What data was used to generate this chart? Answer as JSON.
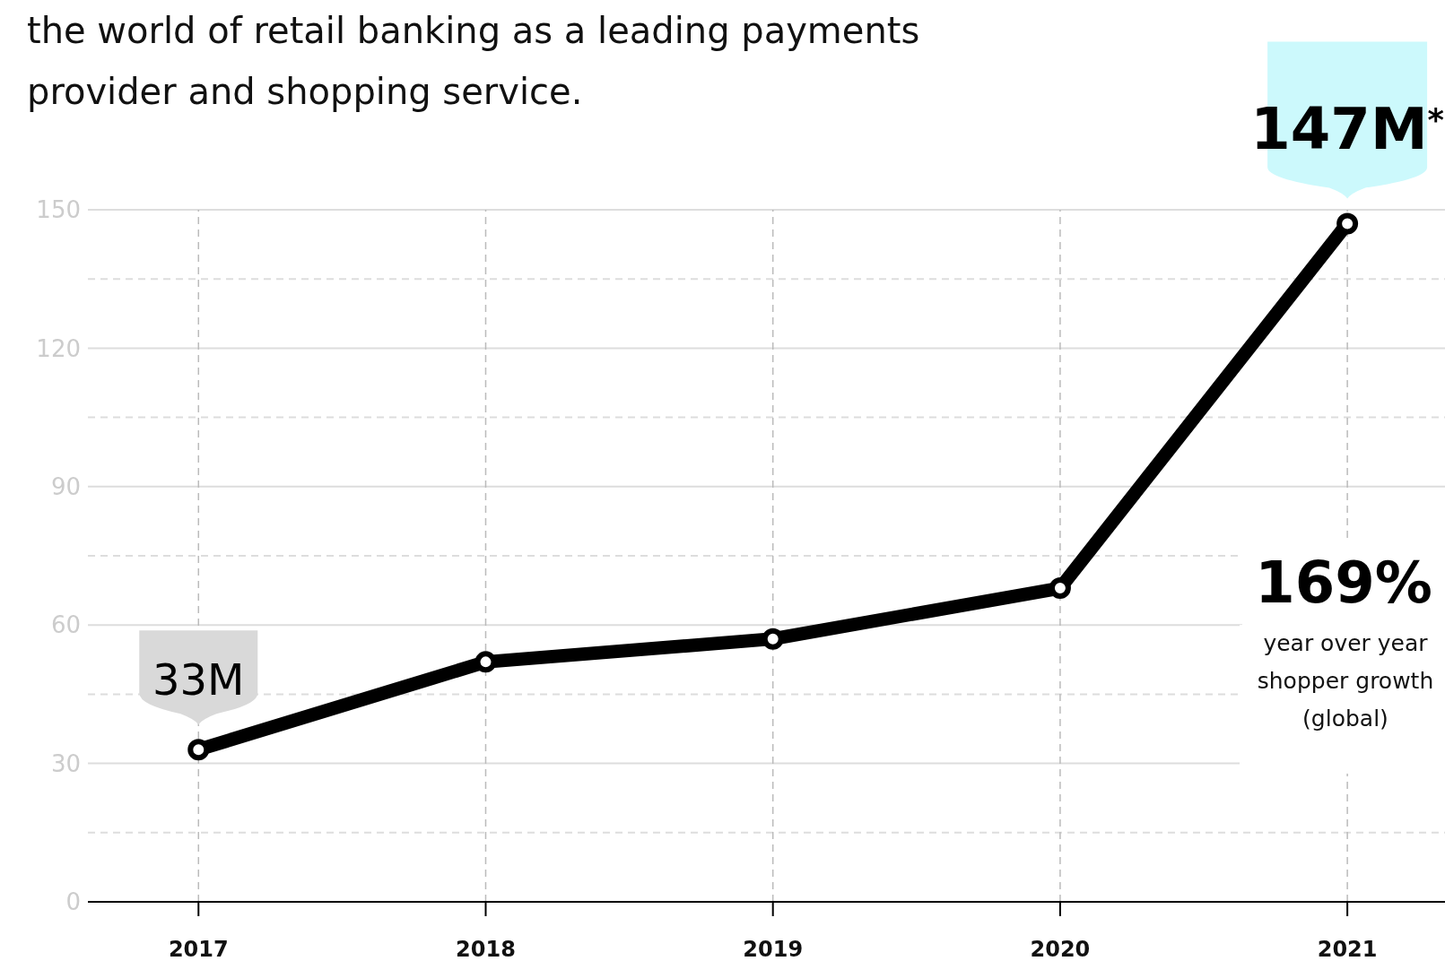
{
  "chart_data": {
    "type": "line",
    "title": "the world of retail banking as a leading payments provider and shopping service.",
    "categories": [
      "2017",
      "2018",
      "2019",
      "2020",
      "2021"
    ],
    "series": [
      {
        "color": "#000000",
        "values": [
          33,
          52,
          57,
          68,
          147
        ],
        "value_labels": [
          "33M",
          null,
          null,
          null,
          "147M$^{*}$"
        ]
      }
    ],
    "ylim": [
      0,
      150
    ],
    "yticks": [
      0,
      {
        "value": 15,
        "label": null
      },
      30,
      {
        "value": 45,
        "label": null
      },
      60,
      {
        "value": 75,
        "label": null
      },
      90,
      {
        "value": 105,
        "label": null
      },
      120,
      {
        "value": 135,
        "label": null
      },
      150
    ],
    "grid": true,
    "marker": "circle",
    "line_style": "solid",
    "annotations": [
      "169%",
      "year over year shopper growth (global)"
    ]
  }
}
